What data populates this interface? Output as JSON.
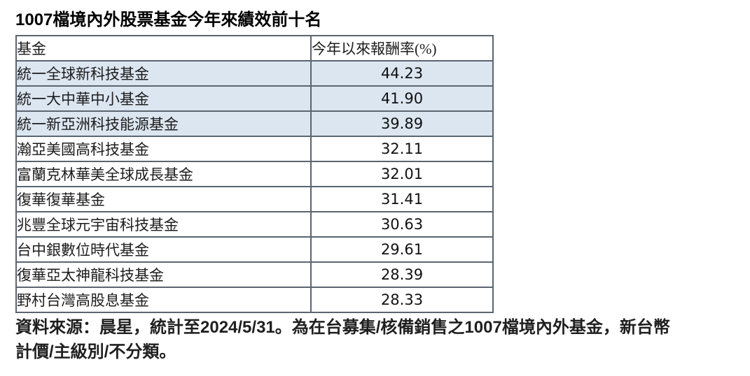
{
  "title": "1007檔境內外股票基金今年來績效前十名",
  "table": {
    "columns": {
      "fund": "基金",
      "value": "今年以來報酬率(%)"
    },
    "rows": [
      {
        "fund": "統一全球新科技基金",
        "value": "44.23",
        "highlight": true
      },
      {
        "fund": "統一大中華中小基金",
        "value": "41.90",
        "highlight": true
      },
      {
        "fund": "統一新亞洲科技能源基金",
        "value": "39.89",
        "highlight": true
      },
      {
        "fund": "瀚亞美國高科技基金",
        "value": "32.11",
        "highlight": false
      },
      {
        "fund": "富蘭克林華美全球成長基金",
        "value": "32.01",
        "highlight": false
      },
      {
        "fund": "復華復華基金",
        "value": "31.41",
        "highlight": false
      },
      {
        "fund": "兆豐全球元宇宙科技基金",
        "value": "30.63",
        "highlight": false
      },
      {
        "fund": "台中銀數位時代基金",
        "value": "29.61",
        "highlight": false
      },
      {
        "fund": "復華亞太神龍科技基金",
        "value": "28.39",
        "highlight": false
      },
      {
        "fund": "野村台灣高股息基金",
        "value": "28.33",
        "highlight": false
      }
    ]
  },
  "footer": {
    "line1": "資料來源：晨星，統計至2024/5/31。為在台募集/核備銷售之1007檔境內外基金，新台幣",
    "line2": "計價/主級別/不分類。"
  },
  "colors": {
    "highlight_row": "#dce6f1",
    "inner_border": "#5b6570",
    "outer_border": "#333a40",
    "text": "#1c1c1c"
  },
  "chart_data": {
    "type": "table",
    "title": "1007檔境內外股票基金今年來績效前十名",
    "columns": [
      "基金",
      "今年以來報酬率(%)"
    ],
    "rows": [
      [
        "統一全球新科技基金",
        44.23
      ],
      [
        "統一大中華中小基金",
        41.9
      ],
      [
        "統一新亞洲科技能源基金",
        39.89
      ],
      [
        "瀚亞美國高科技基金",
        32.11
      ],
      [
        "富蘭克林華美全球成長基金",
        32.01
      ],
      [
        "復華復華基金",
        31.41
      ],
      [
        "兆豐全球元宇宙科技基金",
        30.63
      ],
      [
        "台中銀數位時代基金",
        29.61
      ],
      [
        "復華亞太神龍科技基金",
        28.39
      ],
      [
        "野村台灣高股息基金",
        28.33
      ]
    ],
    "highlighted_rows": [
      0,
      1,
      2
    ],
    "source_note": "資料來源：晨星，統計至2024/5/31。為在台募集/核備銷售之1007檔境內外基金，新台幣計價/主級別/不分類。"
  }
}
